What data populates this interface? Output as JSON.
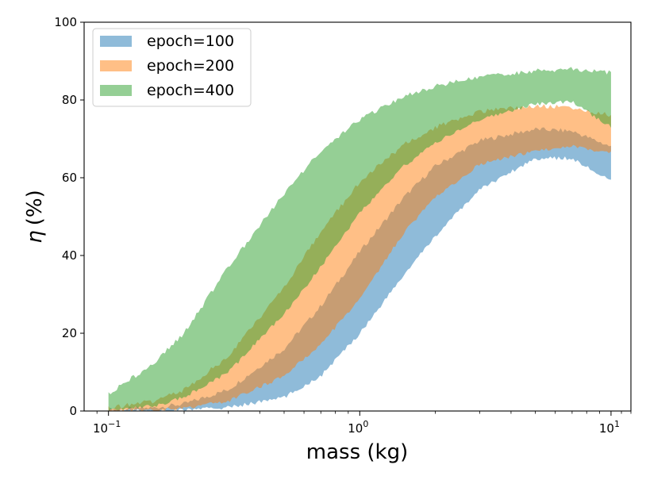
{
  "chart_data": {
    "type": "area",
    "title": "",
    "xlabel": "mass (kg)",
    "ylabel_symbol": "η",
    "ylabel_unit": "(%)",
    "xscale": "log",
    "xlim": [
      0.08,
      12
    ],
    "ylim": [
      0,
      100
    ],
    "x_ticks": [
      {
        "value": 0.1,
        "base": "10",
        "exp": "−1"
      },
      {
        "value": 1,
        "base": "10",
        "exp": "0"
      },
      {
        "value": 10,
        "base": "10",
        "exp": "1"
      }
    ],
    "y_ticks": [
      "0",
      "20",
      "40",
      "60",
      "80",
      "100"
    ],
    "legend_position": "top-left",
    "series": [
      {
        "name": "epoch=100",
        "color": "#1f77b4",
        "x": [
          0.1,
          0.15,
          0.2,
          0.3,
          0.5,
          0.7,
          1.0,
          1.5,
          2.0,
          3.0,
          5.0,
          7.0,
          10.0
        ],
        "lower": [
          0,
          0.1,
          0.3,
          0.9,
          3.5,
          9,
          20,
          35,
          45,
          57,
          65,
          65,
          59
        ],
        "upper": [
          0.3,
          0.8,
          1.8,
          5.5,
          16,
          27,
          41,
          55,
          63,
          69.5,
          72.5,
          72,
          68
        ]
      },
      {
        "name": "epoch=200",
        "color": "#ff7f0e",
        "x": [
          0.1,
          0.15,
          0.2,
          0.3,
          0.5,
          0.7,
          1.0,
          1.5,
          2.0,
          3.0,
          5.0,
          7.0,
          10.0
        ],
        "lower": [
          0,
          0.2,
          0.7,
          2.5,
          9,
          17,
          29,
          46,
          55,
          63.5,
          67,
          68,
          66.5
        ],
        "upper": [
          0.8,
          2.5,
          5.5,
          14,
          32,
          46,
          59,
          68.5,
          73,
          77,
          78.5,
          78,
          76
        ]
      },
      {
        "name": "epoch=400",
        "color": "#2ca02c",
        "x": [
          0.1,
          0.15,
          0.2,
          0.3,
          0.5,
          0.7,
          1.0,
          1.5,
          2.0,
          3.0,
          5.0,
          7.0,
          10.0
        ],
        "lower": [
          0.2,
          1.2,
          3.5,
          10,
          25,
          37,
          51,
          63,
          69,
          75,
          79,
          79.5,
          73
        ],
        "upper": [
          4.5,
          12,
          20,
          37,
          56,
          67,
          75,
          81,
          83.5,
          86,
          87.5,
          88,
          87
        ]
      }
    ]
  }
}
